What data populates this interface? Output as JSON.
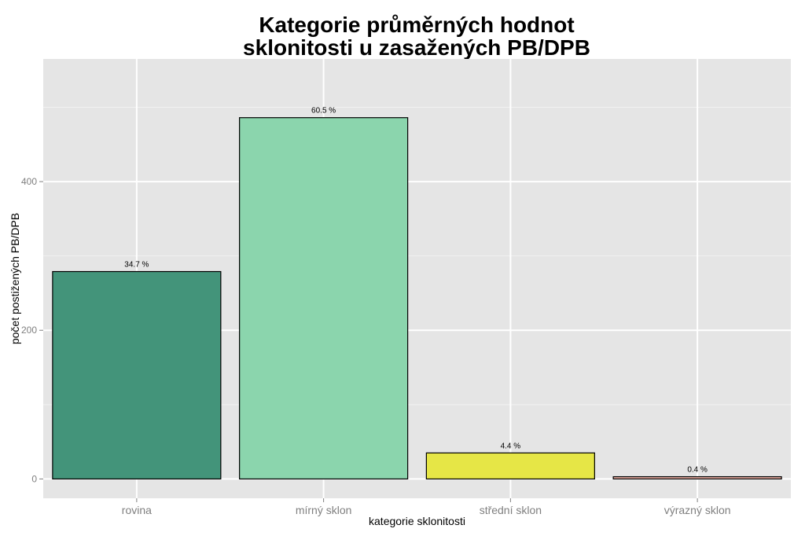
{
  "chart_data": {
    "type": "bar",
    "title_lines": [
      "Kategorie průměrných hodnot",
      "sklonitosti u zasažených PB/DPB"
    ],
    "xlabel": "kategorie sklonitosti",
    "ylabel": "počet postižených PB/DPB",
    "categories": [
      "rovina",
      "mírný sklon",
      "střední sklon",
      "výrazný sklon"
    ],
    "values": [
      279,
      486,
      35,
      3
    ],
    "data_labels": [
      "34.7 %",
      "60.5 %",
      "4.4 %",
      "0.4 %"
    ],
    "colors": [
      "#43947a",
      "#8bd5ad",
      "#e6e646",
      "#f2b5a8"
    ],
    "ylim": [
      -26,
      565
    ],
    "yticks": [
      0,
      200,
      400
    ],
    "ytick_labels": [
      "0",
      "200",
      "400"
    ],
    "grid": true,
    "panel_background": "#e5e5e5"
  }
}
